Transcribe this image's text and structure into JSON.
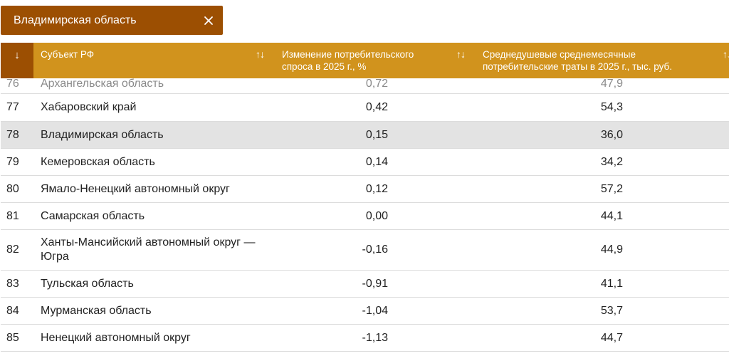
{
  "filter": {
    "label": "Владимирская область",
    "close_icon": "close-icon"
  },
  "colors": {
    "accent_dark": "#9c4f02",
    "header_bg": "#d1931d",
    "highlight_row": "#e3e3e3"
  },
  "table": {
    "sort_indicator": "↓",
    "headers": {
      "subject": "Субъект РФ",
      "change": "Изменение потребительского спроса в 2025 г., %",
      "spend": "Среднедушевые среднемесячные потребительские траты в 2025 г., тыс. руб."
    },
    "sort_toggle": "↑↓",
    "rows": [
      {
        "rank": "76",
        "name": "Архангельская область",
        "change": "0,72",
        "spend": "47,9",
        "state": "faded"
      },
      {
        "rank": "77",
        "name": "Хабаровский край",
        "change": "0,42",
        "spend": "54,3",
        "state": ""
      },
      {
        "rank": "78",
        "name": "Владимирская область",
        "change": "0,15",
        "spend": "36,0",
        "state": "highlight"
      },
      {
        "rank": "79",
        "name": "Кемеровская область",
        "change": "0,14",
        "spend": "34,2",
        "state": ""
      },
      {
        "rank": "80",
        "name": "Ямало-Ненецкий автономный округ",
        "change": "0,12",
        "spend": "57,2",
        "state": ""
      },
      {
        "rank": "81",
        "name": "Самарская область",
        "change": "0,00",
        "spend": "44,1",
        "state": ""
      },
      {
        "rank": "82",
        "name": "Ханты-Мансийский автономный округ — Югра",
        "change": "-0,16",
        "spend": "44,9",
        "state": ""
      },
      {
        "rank": "83",
        "name": "Тульская область",
        "change": "-0,91",
        "spend": "41,1",
        "state": ""
      },
      {
        "rank": "84",
        "name": "Мурманская область",
        "change": "-1,04",
        "spend": "53,7",
        "state": ""
      },
      {
        "rank": "85",
        "name": "Ненецкий автономный округ",
        "change": "-1,13",
        "spend": "44,7",
        "state": ""
      }
    ]
  }
}
